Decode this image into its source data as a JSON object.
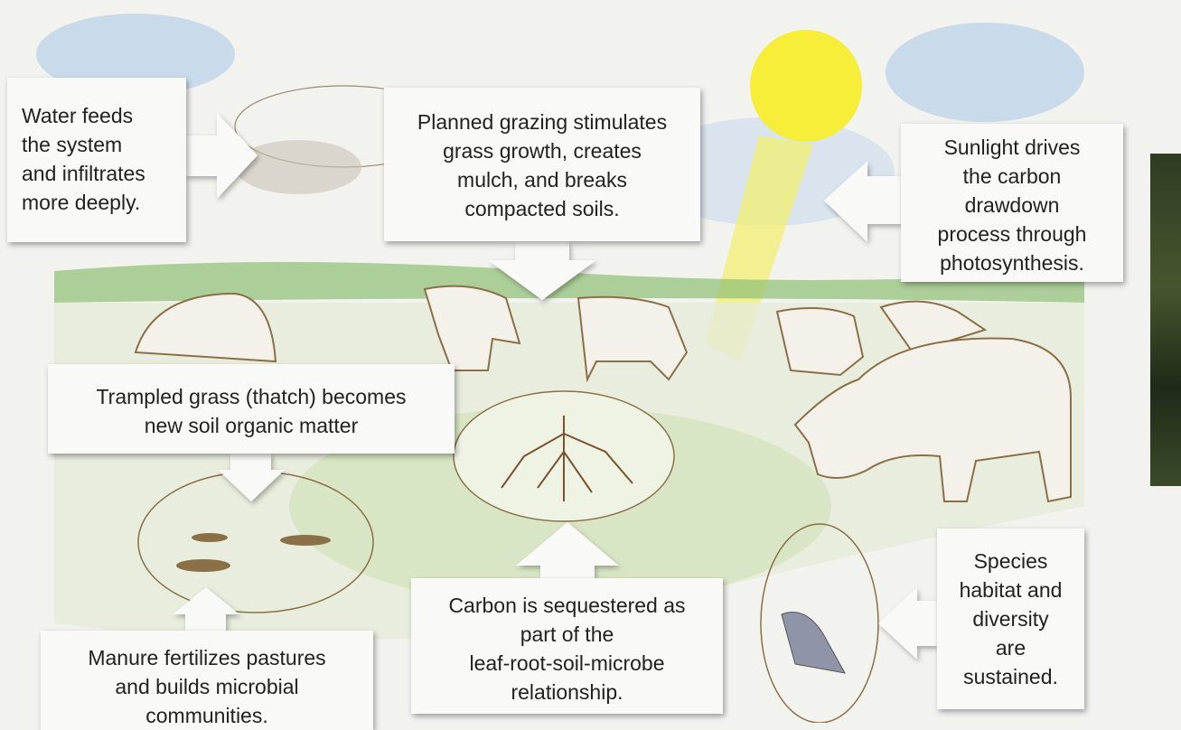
{
  "callouts": [
    {
      "lines": [
        "Water feeds",
        "the system",
        "and infiltrates",
        "more deeply."
      ]
    },
    {
      "lines": [
        "Planned grazing stimulates",
        "grass growth, creates",
        "mulch, and breaks",
        "compacted soils."
      ]
    },
    {
      "lines": [
        "Sunlight drives",
        "the carbon",
        "drawdown",
        "process through",
        "photosynthesis."
      ]
    },
    {
      "lines": [
        "Trampled grass (thatch) becomes",
        "new soil organic matter"
      ]
    },
    {
      "lines": [
        "Manure fertilizes pastures",
        "and builds microbial",
        "communities."
      ]
    },
    {
      "lines": [
        "Carbon is sequestered as",
        "part of the",
        "leaf-root-soil-microbe",
        "relationship."
      ]
    },
    {
      "lines": [
        "Species",
        "habitat and",
        "diversity",
        "are",
        "sustained."
      ]
    }
  ]
}
